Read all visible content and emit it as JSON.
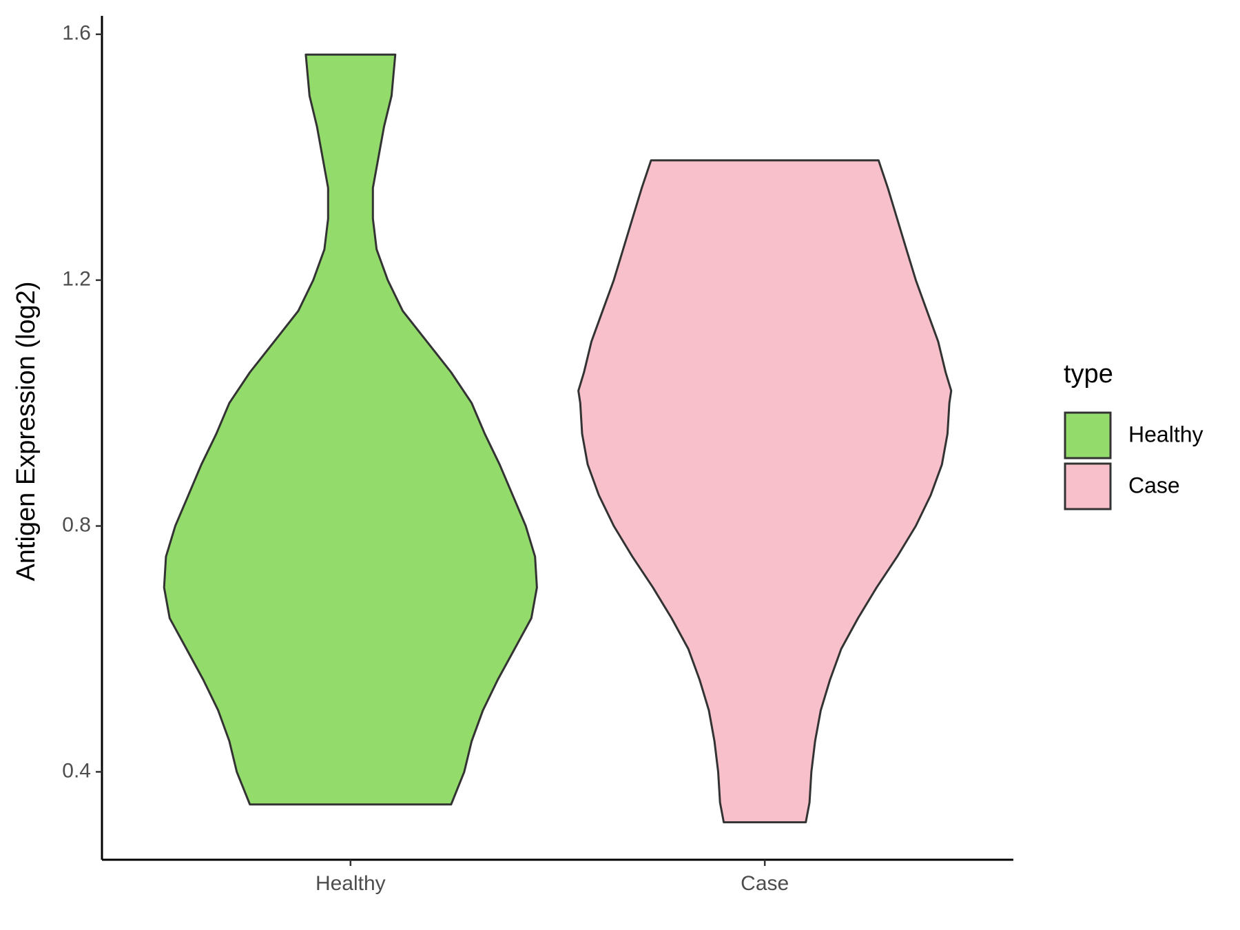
{
  "chart_data": {
    "type": "violin",
    "y_label": "Antigen Expression (log2)",
    "categories": [
      "Healthy",
      "Case"
    ],
    "ylim": [
      0.257,
      1.63
    ],
    "yticks": [
      0.4,
      0.8,
      1.2,
      1.6
    ],
    "legend_title": "type",
    "legend_position": "right",
    "series": [
      {
        "name": "Healthy",
        "color": "#93db6a",
        "y": [
          0.347,
          0.4,
          0.45,
          0.5,
          0.55,
          0.6,
          0.65,
          0.7,
          0.75,
          0.8,
          0.85,
          0.9,
          0.95,
          1.0,
          1.05,
          1.1,
          1.15,
          1.2,
          1.25,
          1.3,
          1.35,
          1.4,
          1.45,
          1.5,
          1.567
        ],
        "density": [
          0.54,
          0.61,
          0.65,
          0.71,
          0.79,
          0.88,
          0.97,
          1.0,
          0.99,
          0.94,
          0.87,
          0.8,
          0.72,
          0.65,
          0.54,
          0.41,
          0.28,
          0.2,
          0.14,
          0.12,
          0.12,
          0.15,
          0.18,
          0.22,
          0.24
        ]
      },
      {
        "name": "Case",
        "color": "#f7c0cb",
        "y": [
          0.318,
          0.35,
          0.4,
          0.45,
          0.5,
          0.55,
          0.6,
          0.65,
          0.7,
          0.75,
          0.8,
          0.85,
          0.9,
          0.95,
          1.0,
          1.02,
          1.05,
          1.1,
          1.15,
          1.2,
          1.25,
          1.3,
          1.35,
          1.395
        ],
        "density": [
          0.22,
          0.24,
          0.25,
          0.27,
          0.3,
          0.35,
          0.41,
          0.5,
          0.6,
          0.71,
          0.81,
          0.89,
          0.95,
          0.98,
          0.99,
          1.0,
          0.97,
          0.93,
          0.87,
          0.81,
          0.76,
          0.71,
          0.66,
          0.61
        ]
      }
    ]
  }
}
